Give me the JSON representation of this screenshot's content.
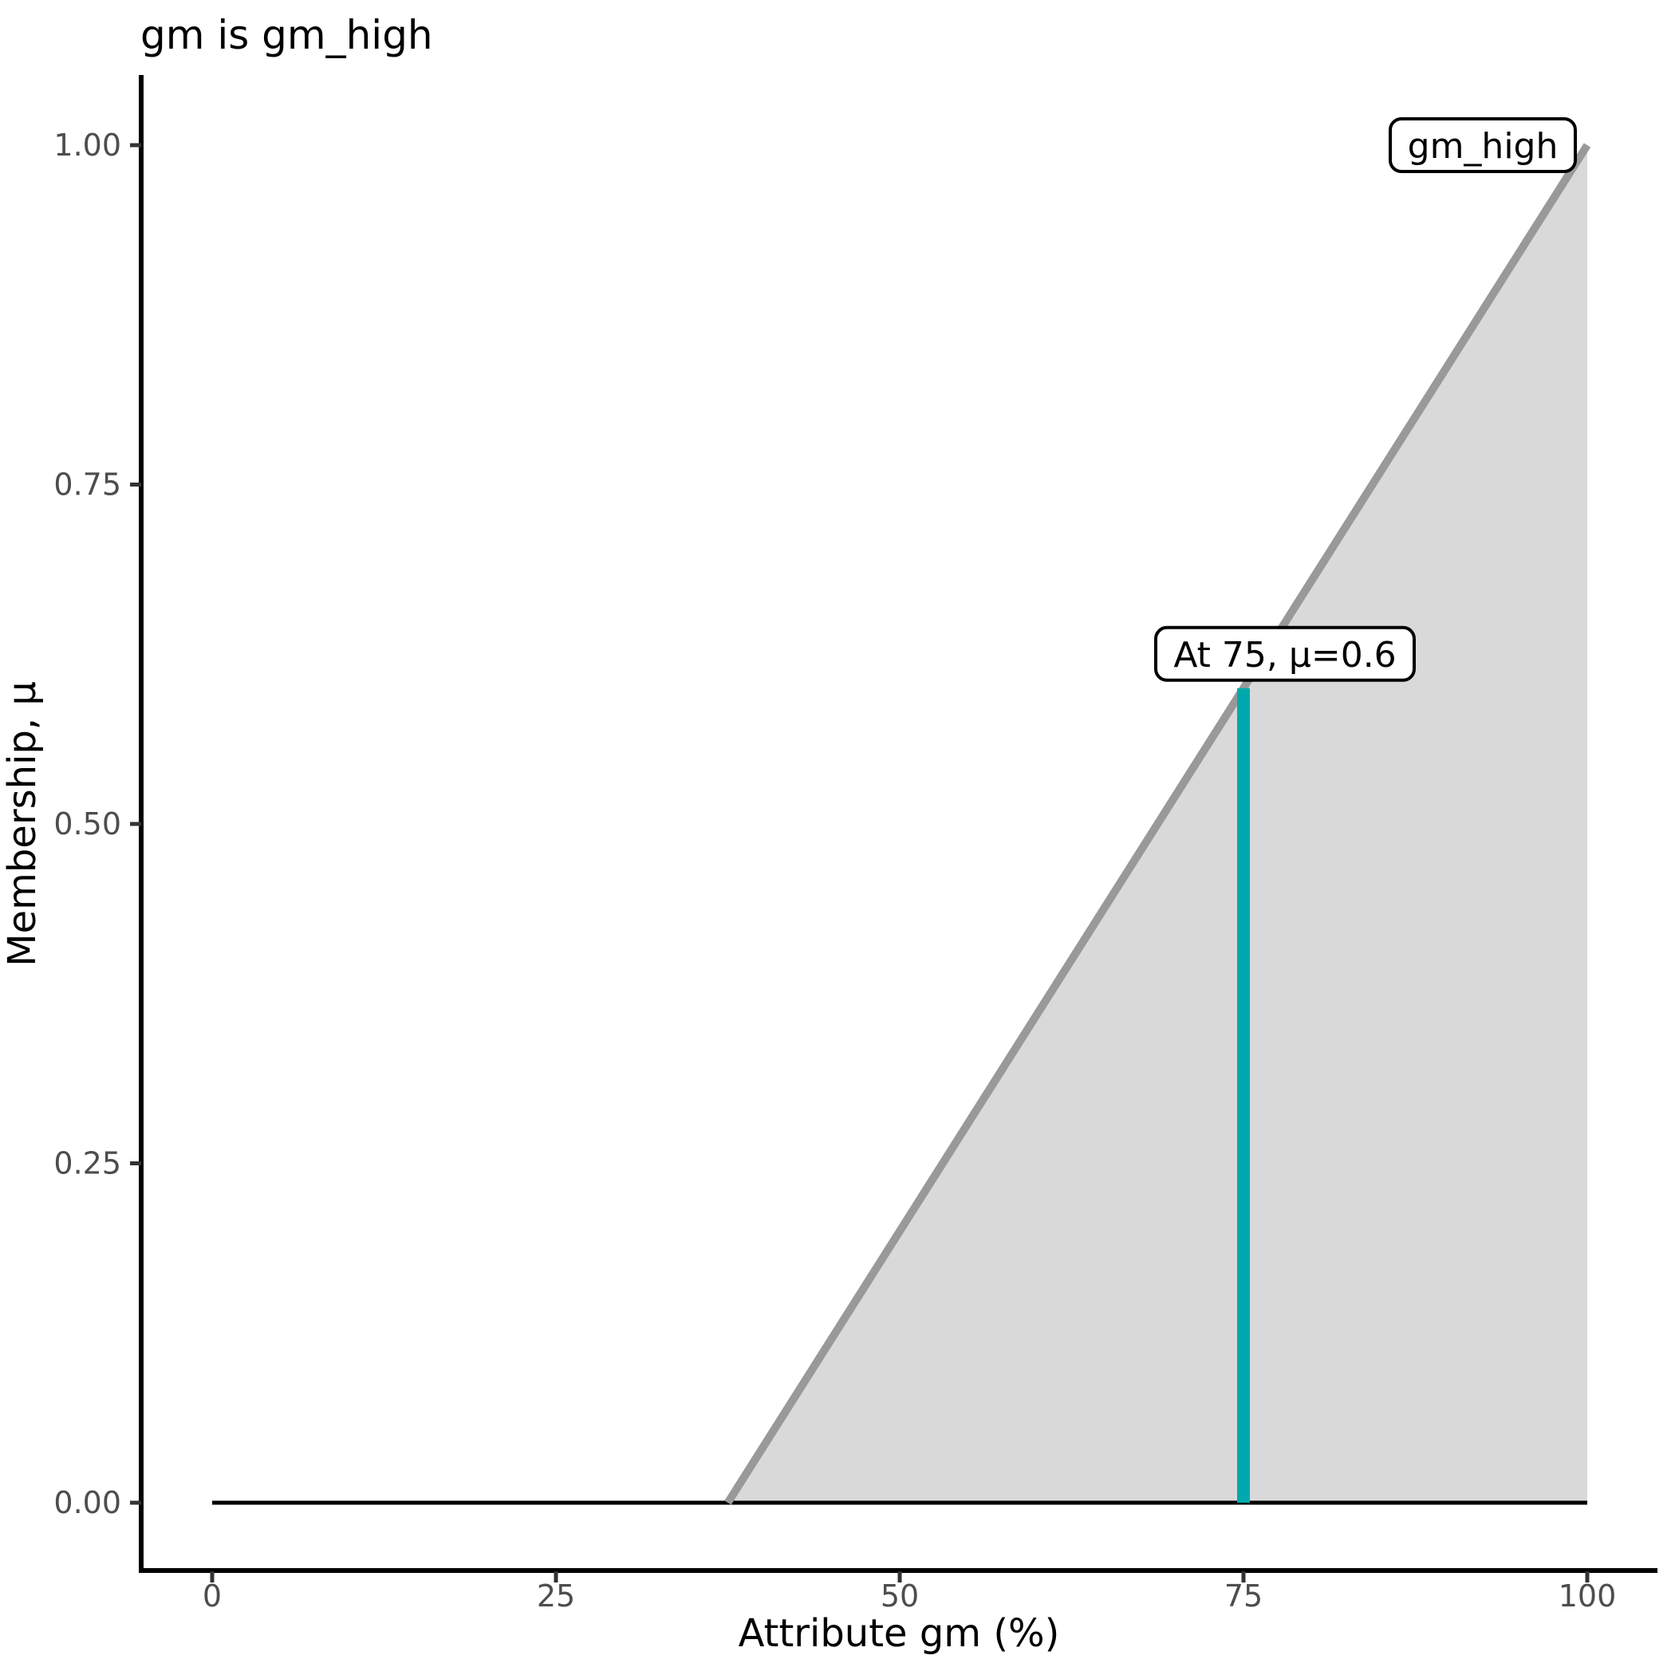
{
  "chart_data": {
    "type": "area",
    "title": "gm is gm_high",
    "xlabel": "Attribute gm (%)",
    "ylabel": "Membership, μ",
    "xlim": [
      0,
      100
    ],
    "ylim": [
      0,
      1
    ],
    "grid": false,
    "legend": "none",
    "x_ticks": {
      "values": [
        0,
        25,
        50,
        75,
        100
      ],
      "labels": [
        "0",
        "25",
        "50",
        "75",
        "100"
      ]
    },
    "y_ticks": {
      "values": [
        0,
        0.25,
        0.5,
        0.75,
        1
      ],
      "labels": [
        "0.00",
        "0.25",
        "0.50",
        "0.75",
        "1.00"
      ]
    },
    "fuzzy_set": {
      "name": "gm_high",
      "shape": "linear-ramp",
      "foot_x": 37.5,
      "peak_x": 100,
      "curve_points": [
        [
          0,
          0
        ],
        [
          37.5,
          0
        ],
        [
          100,
          1
        ]
      ]
    },
    "baseline_segment": {
      "from": [
        0,
        0
      ],
      "to": [
        100,
        0
      ],
      "color": "#000000",
      "width": 5
    },
    "ramp_segment": {
      "from": [
        37.5,
        0
      ],
      "to": [
        100,
        1
      ],
      "color": "#999999",
      "width": 10
    },
    "fill": {
      "polygon": [
        [
          37.5,
          0
        ],
        [
          100,
          1
        ],
        [
          100,
          0
        ]
      ],
      "color": "#D9D9D9"
    },
    "highlight": {
      "x": 75,
      "mu": 0.6,
      "color": "#00A9AD",
      "width": 16,
      "label": "At 75, μ=0.6"
    },
    "annotations": [
      {
        "text": "At 75, μ=0.6",
        "anchor": [
          75,
          0.6
        ]
      },
      {
        "text": "gm_high",
        "anchor": [
          100,
          1.0
        ]
      }
    ],
    "colors": {
      "membership_line": "#999999",
      "area_fill": "#D9D9D9",
      "highlight_line": "#00A9AD",
      "tick_text": "#4D4D4D",
      "tick_mark": "#333333",
      "axis_line": "#000000",
      "title_text": "#000000"
    }
  }
}
